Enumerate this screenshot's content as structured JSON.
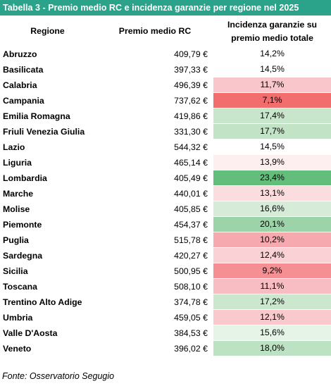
{
  "title": "Tabella 3 - Premio medio RC e incidenza garanzie per regione nel 2025",
  "headers": {
    "region": "Regione",
    "premium": "Premio medio RC",
    "incidence_line1": "Incidenza garanzie su",
    "incidence_line2": "premio medio totale"
  },
  "rows": [
    {
      "region": "Abruzzo",
      "premium": "409,79 €",
      "incidence": "14,2%",
      "color": "#ffffff"
    },
    {
      "region": "Basilicata",
      "premium": "397,33 €",
      "incidence": "14,5%",
      "color": "#ffffff"
    },
    {
      "region": "Calabria",
      "premium": "496,39 €",
      "incidence": "11,7%",
      "color": "#f9c6cb"
    },
    {
      "region": "Campania",
      "premium": "737,62 €",
      "incidence": "7,1%",
      "color": "#f26d6d"
    },
    {
      "region": "Emilia Romagna",
      "premium": "419,86 €",
      "incidence": "17,4%",
      "color": "#c8e6cc"
    },
    {
      "region": "Friuli Venezia Giulia",
      "premium": "331,30 €",
      "incidence": "17,7%",
      "color": "#c2e3c6"
    },
    {
      "region": "Lazio",
      "premium": "544,32 €",
      "incidence": "14,5%",
      "color": "#ffffff"
    },
    {
      "region": "Liguria",
      "premium": "465,14 €",
      "incidence": "13,9%",
      "color": "#fdeef0"
    },
    {
      "region": "Lombardia",
      "premium": "405,49 €",
      "incidence": "23,4%",
      "color": "#63be7b"
    },
    {
      "region": "Marche",
      "premium": "440,01 €",
      "incidence": "13,1%",
      "color": "#fbdde0"
    },
    {
      "region": "Molise",
      "premium": "405,85 €",
      "incidence": "16,6%",
      "color": "#d6ecd9"
    },
    {
      "region": "Piemonte",
      "premium": "454,37 €",
      "incidence": "20,1%",
      "color": "#9dd3a9"
    },
    {
      "region": "Puglia",
      "premium": "515,78 €",
      "incidence": "10,2%",
      "color": "#f6aaaf"
    },
    {
      "region": "Sardegna",
      "premium": "420,27 €",
      "incidence": "12,4%",
      "color": "#fad1d5"
    },
    {
      "region": "Sicilia",
      "premium": "500,95 €",
      "incidence": "9,2%",
      "color": "#f48f93"
    },
    {
      "region": "Toscana",
      "premium": "508,10 €",
      "incidence": "11,1%",
      "color": "#f8bdc2"
    },
    {
      "region": "Trentino Alto Adige",
      "premium": "374,78 €",
      "incidence": "17,2%",
      "color": "#cbe8cf"
    },
    {
      "region": "Umbria",
      "premium": "459,05 €",
      "incidence": "12,1%",
      "color": "#f9c9cd"
    },
    {
      "region": "Valle D'Aosta",
      "premium": "384,53 €",
      "incidence": "15,6%",
      "color": "#e6f4e8"
    },
    {
      "region": "Veneto",
      "premium": "396,02 €",
      "incidence": "18,0%",
      "color": "#bde1c3"
    }
  ],
  "footer": "Fonte: Osservatorio Segugio"
}
